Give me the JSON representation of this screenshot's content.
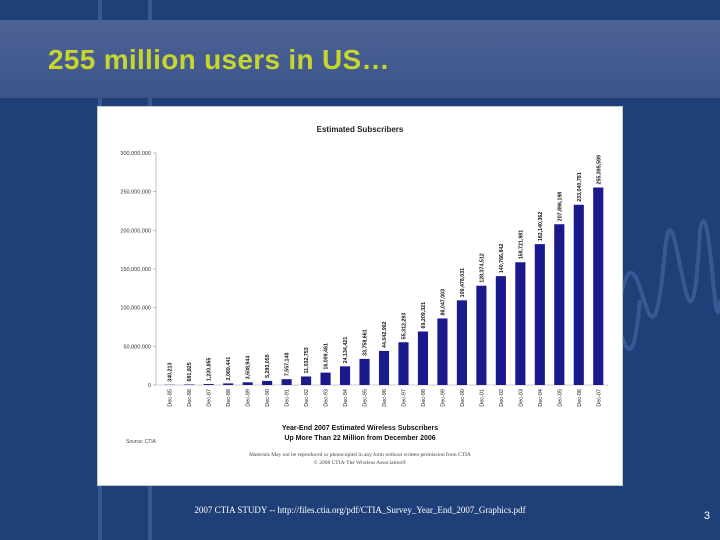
{
  "slide": {
    "title": "255 million users in US…",
    "source_caption": "2007 CTIA STUDY -- http://files.ctia.org/pdf/CTIA_Survey_Year_End_2007_Graphics.pdf",
    "page_number": "3"
  },
  "colors": {
    "background": "#1f3f78",
    "title_band": "#4d6396",
    "title_text": "#c6d62e",
    "bar": "#1a1a8c"
  },
  "chart_data": {
    "type": "bar",
    "title": "Estimated Subscribers",
    "subtitle_1": "Year-End 2007 Estimated Wireless Subscribers",
    "subtitle_2": "Up More Than 22 Million from December 2006",
    "source_note": "Source: CTIA",
    "disclaimer_1": "Materials May not be reproduced or photocopied in any form without written permission from CTIA",
    "disclaimer_2": "© 2008 CTIA-The Wireless Association®",
    "ylim": [
      0,
      300000000
    ],
    "yticks": [
      0,
      50000000,
      100000000,
      150000000,
      200000000,
      250000000,
      300000000
    ],
    "ytick_labels": [
      "0",
      "50,000,000",
      "100,000,000",
      "150,000,000",
      "200,000,000",
      "250,000,000",
      "300,000,000"
    ],
    "categories": [
      "Dec-85",
      "Dec-86",
      "Dec-87",
      "Dec-88",
      "Dec-89",
      "Dec-90",
      "Dec-91",
      "Dec-92",
      "Dec-93",
      "Dec-94",
      "Dec-95",
      "Dec-96",
      "Dec-97",
      "Dec-98",
      "Dec-99",
      "Dec-00",
      "Dec-01",
      "Dec-02",
      "Dec-03",
      "Dec-04",
      "Dec-05",
      "Dec-06",
      "Dec-07"
    ],
    "values": [
      340213,
      681825,
      1230855,
      2069441,
      3508944,
      5283055,
      7557148,
      11032753,
      16009461,
      24134421,
      33758661,
      44042992,
      55312293,
      69209321,
      86047003,
      109478031,
      128374512,
      140766842,
      158721981,
      182140362,
      207896198,
      233040781,
      255395599
    ],
    "value_labels": [
      "340,213",
      "681,825",
      "1,230,855",
      "2,069,441",
      "3,508,944",
      "5,283,055",
      "7,557,148",
      "11,032,753",
      "16,009,461",
      "24,134,421",
      "33,758,661",
      "44,042,992",
      "55,312,293",
      "69,209,321",
      "86,047,003",
      "109,478,031",
      "128,374,512",
      "140,766,842",
      "158,721,981",
      "182,140,362",
      "207,896,198",
      "233,040,781",
      "255,395,599"
    ]
  }
}
